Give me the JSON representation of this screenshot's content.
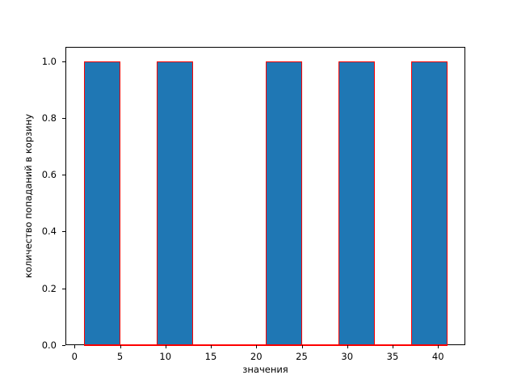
{
  "chart_data": {
    "type": "histogram",
    "xlabel": "значения",
    "ylabel": "количество попаданий в корзину",
    "bin_edges": [
      1,
      5,
      9,
      13,
      17,
      21,
      25,
      29,
      33,
      37,
      41
    ],
    "counts": [
      1,
      0,
      1,
      0,
      0,
      1,
      0,
      1,
      0,
      1
    ],
    "bars": [
      {
        "x0": 1,
        "x1": 5,
        "height": 1.0
      },
      {
        "x0": 9,
        "x1": 13,
        "height": 1.0
      },
      {
        "x0": 21,
        "x1": 25,
        "height": 1.0
      },
      {
        "x0": 29,
        "x1": 33,
        "height": 1.0
      },
      {
        "x0": 37,
        "x1": 41,
        "height": 1.0
      }
    ],
    "xlim": [
      -1,
      43
    ],
    "ylim": [
      0,
      1.05
    ],
    "xticks": [
      0,
      5,
      10,
      15,
      20,
      25,
      30,
      35,
      40
    ],
    "xtick_labels": [
      "0",
      "5",
      "10",
      "15",
      "20",
      "25",
      "30",
      "35",
      "40"
    ],
    "yticks": [
      0.0,
      0.2,
      0.4,
      0.6,
      0.8,
      1.0
    ],
    "ytick_labels": [
      "0.0",
      "0.2",
      "0.4",
      "0.6",
      "0.8",
      "1.0"
    ],
    "grid": false,
    "legend": null,
    "colors": {
      "bar_fill": "#1f77b4",
      "bar_edge": "#ff0000",
      "axis": "#000000",
      "text": "#000000",
      "background": "#ffffff"
    }
  }
}
